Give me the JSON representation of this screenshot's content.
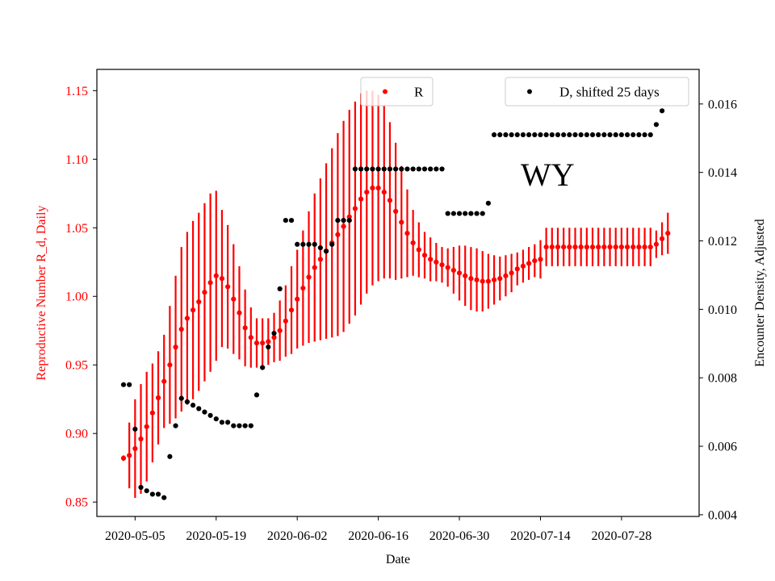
{
  "chart_data": {
    "type": "scatter",
    "state_label": "WY",
    "xlabel": "Date",
    "ylabel_left": "Reproductive Number R_d, Daily",
    "ylabel_right": "Encounter Density, Adjusted",
    "x_tick_labels": [
      "2020-05-05",
      "2020-05-19",
      "2020-06-02",
      "2020-06-16",
      "2020-06-30",
      "2020-07-14",
      "2020-07-28"
    ],
    "x_tick_days": [
      0,
      14,
      28,
      42,
      56,
      70,
      84
    ],
    "y_left_ticks": [
      "0.85",
      "0.90",
      "0.95",
      "1.00",
      "1.05",
      "1.10",
      "1.15"
    ],
    "y_left_values": [
      0.85,
      0.9,
      0.95,
      1.0,
      1.05,
      1.1,
      1.15
    ],
    "y_right_ticks": [
      "0.004",
      "0.006",
      "0.008",
      "0.010",
      "0.012",
      "0.014",
      "0.016"
    ],
    "y_right_values": [
      0.004,
      0.006,
      0.008,
      0.01,
      0.012,
      0.014,
      0.016
    ],
    "x_range_days": [
      -6.6,
      97.4
    ],
    "ylim_left": [
      0.8395,
      1.1655
    ],
    "ylim_right": [
      0.00395,
      0.01701
    ],
    "legends": {
      "left": "R",
      "right": "D, shifted 25 days"
    },
    "colors": {
      "r": "#ff0000",
      "d": "#000000",
      "left_axis_label": "#ff0000"
    },
    "series": [
      {
        "name": "R",
        "axis": "left",
        "x_days": [
          -2,
          -1,
          0,
          1,
          2,
          3,
          4,
          5,
          6,
          7,
          8,
          9,
          10,
          11,
          12,
          13,
          14,
          15,
          16,
          17,
          18,
          19,
          20,
          21,
          22,
          23,
          24,
          25,
          26,
          27,
          28,
          29,
          30,
          31,
          32,
          33,
          34,
          35,
          36,
          37,
          38,
          39,
          40,
          41,
          42,
          43,
          44,
          45,
          46,
          47,
          48,
          49,
          50,
          51,
          52,
          53,
          54,
          55,
          56,
          57,
          58,
          59,
          60,
          61,
          62,
          63,
          64,
          65,
          66,
          67,
          68,
          69,
          70,
          71,
          72,
          73,
          74,
          75,
          76,
          77,
          78,
          79,
          80,
          81,
          82,
          83,
          84,
          85,
          86,
          87,
          88,
          89,
          90,
          91,
          92
        ],
        "values": [
          0.882,
          0.884,
          0.889,
          0.896,
          0.905,
          0.915,
          0.926,
          0.938,
          0.95,
          0.963,
          0.976,
          0.984,
          0.99,
          0.996,
          1.003,
          1.01,
          1.015,
          1.013,
          1.007,
          0.998,
          0.988,
          0.977,
          0.97,
          0.966,
          0.966,
          0.967,
          0.97,
          0.975,
          0.982,
          0.99,
          0.998,
          1.006,
          1.014,
          1.021,
          1.027,
          1.033,
          1.039,
          1.045,
          1.051,
          1.058,
          1.064,
          1.071,
          1.076,
          1.079,
          1.079,
          1.076,
          1.07,
          1.062,
          1.054,
          1.046,
          1.039,
          1.034,
          1.03,
          1.027,
          1.025,
          1.023,
          1.021,
          1.019,
          1.017,
          1.015,
          1.013,
          1.012,
          1.011,
          1.011,
          1.012,
          1.013,
          1.015,
          1.017,
          1.02,
          1.022,
          1.024,
          1.026,
          1.027,
          1.036,
          1.036,
          1.036,
          1.036,
          1.036,
          1.036,
          1.036,
          1.036,
          1.036,
          1.036,
          1.036,
          1.036,
          1.036,
          1.036,
          1.036,
          1.036,
          1.036,
          1.036,
          1.036,
          1.038,
          1.042,
          1.046
        ],
        "err": [
          0.002,
          0.024,
          0.036,
          0.04,
          0.04,
          0.036,
          0.034,
          0.034,
          0.043,
          0.052,
          0.06,
          0.063,
          0.065,
          0.065,
          0.065,
          0.065,
          0.062,
          0.05,
          0.045,
          0.04,
          0.034,
          0.028,
          0.022,
          0.018,
          0.018,
          0.017,
          0.018,
          0.022,
          0.026,
          0.032,
          0.036,
          0.042,
          0.048,
          0.054,
          0.059,
          0.064,
          0.069,
          0.074,
          0.077,
          0.078,
          0.078,
          0.077,
          0.074,
          0.071,
          0.068,
          0.063,
          0.057,
          0.05,
          0.041,
          0.032,
          0.024,
          0.02,
          0.017,
          0.016,
          0.014,
          0.013,
          0.014,
          0.017,
          0.02,
          0.022,
          0.023,
          0.023,
          0.022,
          0.02,
          0.018,
          0.016,
          0.015,
          0.014,
          0.012,
          0.012,
          0.012,
          0.012,
          0.014,
          0.014,
          0.014,
          0.014,
          0.014,
          0.014,
          0.014,
          0.014,
          0.014,
          0.014,
          0.014,
          0.014,
          0.014,
          0.014,
          0.014,
          0.014,
          0.014,
          0.014,
          0.014,
          0.014,
          0.01,
          0.012,
          0.015
        ]
      },
      {
        "name": "D, shifted 25 days",
        "axis": "right",
        "x_days": [
          -2,
          -1,
          0,
          1,
          2,
          3,
          4,
          5,
          6,
          7,
          8,
          9,
          10,
          11,
          12,
          13,
          14,
          15,
          16,
          17,
          18,
          19,
          20,
          21,
          22,
          23,
          24,
          25,
          26,
          27,
          28,
          29,
          30,
          31,
          32,
          33,
          34,
          35,
          36,
          37,
          38,
          39,
          40,
          41,
          42,
          43,
          44,
          45,
          46,
          47,
          48,
          49,
          50,
          51,
          52,
          53,
          54,
          55,
          56,
          57,
          58,
          59,
          60,
          61,
          62,
          63,
          64,
          65,
          66,
          67,
          68,
          69,
          70,
          71,
          72,
          73,
          74,
          75,
          76,
          77,
          78,
          79,
          80,
          81,
          82,
          83,
          84,
          85,
          86,
          87,
          88,
          89,
          90,
          91
        ],
        "values": [
          0.0078,
          0.0078,
          0.0065,
          0.0048,
          0.0047,
          0.0046,
          0.0046,
          0.0045,
          0.0057,
          0.0066,
          0.0074,
          0.0073,
          0.0072,
          0.0071,
          0.007,
          0.0069,
          0.0068,
          0.0067,
          0.0067,
          0.0066,
          0.0066,
          0.0066,
          0.0066,
          0.0075,
          0.0083,
          0.0089,
          0.0093,
          0.0106,
          0.0126,
          0.0126,
          0.0119,
          0.0119,
          0.0119,
          0.0119,
          0.0118,
          0.0117,
          0.0119,
          0.0126,
          0.0126,
          0.0126,
          0.0141,
          0.0141,
          0.0141,
          0.0141,
          0.0141,
          0.0141,
          0.0141,
          0.0141,
          0.0141,
          0.0141,
          0.0141,
          0.0141,
          0.0141,
          0.0141,
          0.0141,
          0.0141,
          0.0128,
          0.0128,
          0.0128,
          0.0128,
          0.0128,
          0.0128,
          0.0128,
          0.0131,
          0.0151,
          0.0151,
          0.0151,
          0.0151,
          0.0151,
          0.0151,
          0.0151,
          0.0151,
          0.0151,
          0.0151,
          0.0151,
          0.0151,
          0.0151,
          0.0151,
          0.0151,
          0.0151,
          0.0151,
          0.0151,
          0.0151,
          0.0151,
          0.0151,
          0.0151,
          0.0151,
          0.0151,
          0.0151,
          0.0151,
          0.0151,
          0.0151,
          0.0154,
          0.0158
        ]
      }
    ]
  }
}
